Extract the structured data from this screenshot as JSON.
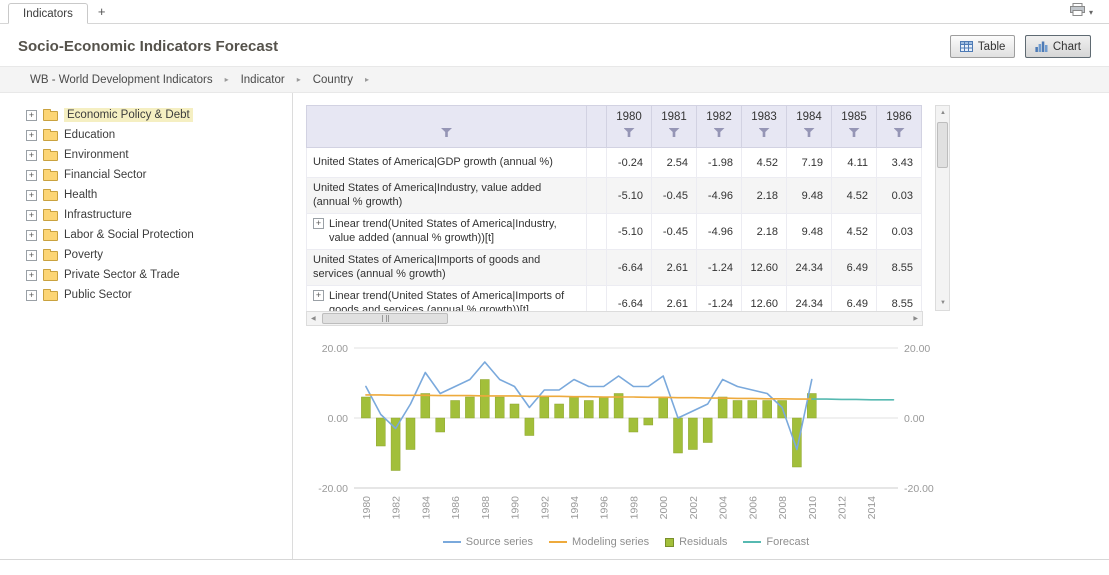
{
  "tabbar": {
    "tabs": [
      {
        "label": "Indicators"
      }
    ],
    "add_label": "+"
  },
  "header": {
    "title": "Socio-Economic Indicators Forecast",
    "view_buttons": [
      {
        "label": "Table",
        "icon": "table-icon",
        "selected": false
      },
      {
        "label": "Chart",
        "icon": "chart-icon",
        "selected": true
      }
    ]
  },
  "breadcrumb": {
    "items": [
      "WB - World Development Indicators",
      "Indicator",
      "Country"
    ],
    "separator": "▸"
  },
  "sidebar": {
    "selected_index": 0,
    "items": [
      "Economic Policy & Debt",
      "Education",
      "Environment",
      "Financial Sector",
      "Health",
      "Infrastructure",
      "Labor & Social Protection",
      "Poverty",
      "Private Sector & Trade",
      "Public Sector"
    ]
  },
  "table": {
    "year_columns": [
      "1980",
      "1981",
      "1982",
      "1983",
      "1984",
      "1985",
      "1986"
    ],
    "rows": [
      {
        "label": "United States of America|GDP growth (annual %)",
        "expandable": false,
        "values": [
          "-0.24",
          "2.54",
          "-1.98",
          "4.52",
          "7.19",
          "4.11",
          "3.43"
        ]
      },
      {
        "label": "United States of America|Industry, value added (annual % growth)",
        "expandable": false,
        "values": [
          "-5.10",
          "-0.45",
          "-4.96",
          "2.18",
          "9.48",
          "4.52",
          "0.03"
        ]
      },
      {
        "label": "Linear trend(United States of America|Industry, value added (annual % growth))[t]",
        "expandable": true,
        "values": [
          "-5.10",
          "-0.45",
          "-4.96",
          "2.18",
          "9.48",
          "4.52",
          "0.03"
        ]
      },
      {
        "label": "United States of America|Imports of goods and services (annual % growth)",
        "expandable": false,
        "values": [
          "-6.64",
          "2.61",
          "-1.24",
          "12.60",
          "24.34",
          "6.49",
          "8.55"
        ]
      },
      {
        "label": "Linear trend(United States of America|Imports of goods and services (annual % growth))[t]",
        "expandable": true,
        "values": [
          "-6.64",
          "2.61",
          "-1.24",
          "12.60",
          "24.34",
          "6.49",
          "8.55"
        ]
      }
    ]
  },
  "chart_data": {
    "type": "combo",
    "title": "",
    "xlim": [
      1979.2,
      2015.8
    ],
    "ylim": [
      -20,
      20
    ],
    "x_ticks": [
      1980,
      1982,
      1984,
      1986,
      1988,
      1990,
      1992,
      1994,
      1996,
      1998,
      2000,
      2002,
      2004,
      2006,
      2008,
      2010,
      2012,
      2014
    ],
    "y_ticks": [
      {
        "value": 20,
        "label": "20.00"
      },
      {
        "value": 0,
        "label": "0.00"
      },
      {
        "value": -20,
        "label": "-20.00"
      }
    ],
    "legend_position": "bottom",
    "grid": true,
    "series": [
      {
        "name": "Source series",
        "type": "line",
        "color": "#7aa9dc",
        "x": [
          1980,
          1981,
          1982,
          1983,
          1984,
          1985,
          1986,
          1987,
          1988,
          1989,
          1990,
          1991,
          1992,
          1993,
          1994,
          1995,
          1996,
          1997,
          1998,
          1999,
          2000,
          2001,
          2002,
          2003,
          2004,
          2005,
          2006,
          2007,
          2008,
          2009,
          2010
        ],
        "values": [
          9,
          1,
          -3,
          4,
          13,
          7,
          9,
          11,
          16,
          11,
          9,
          3,
          8,
          8,
          11,
          9,
          9,
          12,
          9,
          9,
          12,
          0,
          2,
          4,
          11,
          9,
          8,
          7,
          3,
          -9,
          11
        ]
      },
      {
        "name": "Modeling series",
        "type": "line",
        "color": "#eeaa3c",
        "x": [
          1980,
          1981,
          1982,
          1983,
          1984,
          1985,
          1986,
          1987,
          1988,
          1989,
          1990,
          1991,
          1992,
          1993,
          1994,
          1995,
          1996,
          1997,
          1998,
          1999,
          2000,
          2001,
          2002,
          2003,
          2004,
          2005,
          2006,
          2007,
          2008,
          2009,
          2010
        ],
        "values": [
          6.6,
          6.6,
          6.5,
          6.5,
          6.5,
          6.4,
          6.4,
          6.4,
          6.3,
          6.3,
          6.3,
          6.2,
          6.2,
          6.2,
          6.1,
          6.1,
          6.0,
          6.0,
          6.0,
          5.9,
          5.9,
          5.8,
          5.8,
          5.7,
          5.7,
          5.6,
          5.6,
          5.5,
          5.5,
          5.4,
          5.4
        ]
      },
      {
        "name": "Residuals",
        "type": "bar",
        "color": "#a2bf3a",
        "x": [
          1980,
          1981,
          1982,
          1983,
          1984,
          1985,
          1986,
          1987,
          1988,
          1989,
          1990,
          1991,
          1992,
          1993,
          1994,
          1995,
          1996,
          1997,
          1998,
          1999,
          2000,
          2001,
          2002,
          2003,
          2004,
          2005,
          2006,
          2007,
          2008,
          2009,
          2010
        ],
        "values": [
          6,
          -8,
          -15,
          -9,
          7,
          -4,
          5,
          6,
          11,
          6,
          4,
          -5,
          6,
          4,
          6,
          5,
          6,
          7,
          -4,
          -2,
          6,
          -10,
          -9,
          -7,
          6,
          5,
          5,
          5,
          5,
          -14,
          7
        ]
      },
      {
        "name": "Forecast",
        "type": "line",
        "color": "#56b9b1",
        "x": [
          2010,
          2011,
          2012,
          2013,
          2014,
          2015.5
        ],
        "values": [
          5.4,
          5.4,
          5.3,
          5.3,
          5.2,
          5.2
        ]
      }
    ]
  },
  "colors": {
    "source_series": "#7aa9dc",
    "modeling_series": "#eeaa3c",
    "residuals": "#a2bf3a",
    "forecast": "#56b9b1",
    "grid_header_bg": "#e7e7f3",
    "selected_highlight": "#f5efc2"
  }
}
